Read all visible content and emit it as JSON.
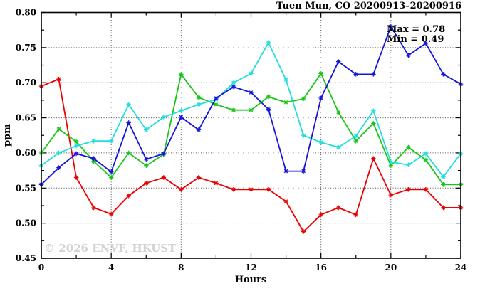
{
  "title": "Tuen Mun, CO 20200913–20200916",
  "annotation": {
    "max_label": "Max = 0.78",
    "min_label": "Min = 0.49"
  },
  "watermark": "© 2026 ENVF, HKUST",
  "chart_data": {
    "type": "line",
    "title": "Tuen Mun, CO 20200913–20200916",
    "xlabel": "Hours",
    "ylabel": "ppm",
    "xlim": [
      0,
      24
    ],
    "ylim": [
      0.45,
      0.8
    ],
    "x_ticks": [
      0,
      4,
      8,
      12,
      16,
      20,
      24
    ],
    "x_minor_step": 2,
    "y_tick_step": 0.05,
    "y_minor_step": 0.025,
    "grid": "dotted gridlines at x majors (4,8,12,16,20) and y majors (0.50-0.75)",
    "legend_position": "none",
    "marker": "asterisk",
    "max_value": 0.78,
    "min_value": 0.49,
    "x": [
      0,
      1,
      2,
      3,
      4,
      5,
      6,
      7,
      8,
      9,
      10,
      11,
      12,
      13,
      14,
      15,
      16,
      17,
      18,
      19,
      20,
      21,
      22,
      23,
      24
    ],
    "series": [
      {
        "name": "series-red",
        "color": "#ee0000",
        "values": [
          0.695,
          0.705,
          0.565,
          0.522,
          0.513,
          0.539,
          0.557,
          0.565,
          0.548,
          0.565,
          0.557,
          0.548,
          0.548,
          0.548,
          0.531,
          0.488,
          0.512,
          0.522,
          0.512,
          0.592,
          0.54,
          0.548,
          0.548,
          0.522,
          0.522
        ]
      },
      {
        "name": "series-green",
        "color": "#17c617",
        "values": [
          0.6,
          0.634,
          0.616,
          0.588,
          0.565,
          0.6,
          0.582,
          0.598,
          0.712,
          0.679,
          0.669,
          0.661,
          0.661,
          0.68,
          0.672,
          0.677,
          0.713,
          0.658,
          0.617,
          0.642,
          0.582,
          0.608,
          0.59,
          0.555,
          0.555
        ]
      },
      {
        "name": "series-cyan",
        "color": "#21dede",
        "values": [
          0.582,
          0.6,
          0.61,
          0.617,
          0.617,
          0.669,
          0.633,
          0.651,
          0.66,
          0.669,
          0.676,
          0.7,
          0.713,
          0.757,
          0.704,
          0.625,
          0.615,
          0.608,
          0.624,
          0.66,
          0.587,
          0.583,
          0.599,
          0.566,
          0.599
        ]
      },
      {
        "name": "series-blue",
        "color": "#1414dd",
        "values": [
          0.555,
          0.579,
          0.599,
          0.592,
          0.573,
          0.643,
          0.591,
          0.599,
          0.651,
          0.633,
          0.678,
          0.694,
          0.686,
          0.662,
          0.574,
          0.574,
          0.678,
          0.73,
          0.712,
          0.712,
          0.78,
          0.739,
          0.756,
          0.712,
          0.698
        ]
      }
    ]
  }
}
